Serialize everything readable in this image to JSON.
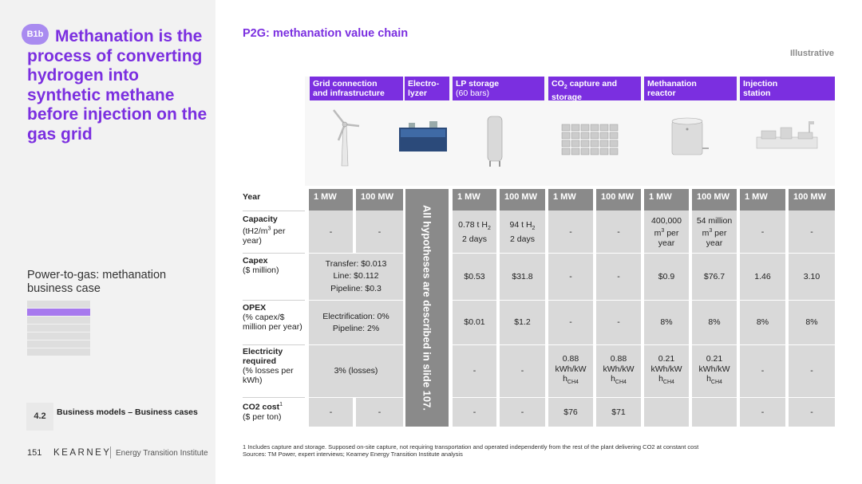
{
  "left": {
    "badge": "B1b",
    "title": "Methanation is the process of converting hydrogen into synthetic methane before injection on the gas grid",
    "section_label": "Power-to-gas: methanation business case",
    "nav_number": "4.2",
    "nav_text": "Business models – Business cases",
    "page_number": "151",
    "brand": "KEARNEY",
    "brand_sub": "Energy Transition Institute"
  },
  "slide": {
    "title": "P2G: methanation value chain",
    "tag": "Illustrative"
  },
  "chain": [
    {
      "l1": "Grid connection",
      "l2": "and infrastructure",
      "icon": "wind-turbine-icon"
    },
    {
      "l1": "Electro-",
      "l2": "lyzer",
      "icon": "electrolyzer-icon"
    },
    {
      "l1": "LP storage",
      "l2": "(60 bars)",
      "icon": "storage-tank-icon"
    },
    {
      "l1": "CO2 capture and",
      "l2": "storage",
      "icon": "co2-capture-icon"
    },
    {
      "l1": "Methanation",
      "l2": "reactor",
      "icon": "reactor-icon"
    },
    {
      "l1": "Injection",
      "l2": "station",
      "icon": "injection-station-icon"
    }
  ],
  "table": {
    "year_label": "Year",
    "columns": [
      "1 MW",
      "100 MW",
      "1 MW",
      "100 MW",
      "1 MW",
      "100 MW",
      "1 MW",
      "100 MW",
      "1 MW",
      "100 MW"
    ],
    "vertical_note": "All hypotheses are described in slide 107.",
    "rows": {
      "capacity": {
        "label_bold": "Capacity",
        "label_rest": "(tH2/m3 per year)",
        "grid": [
          "-",
          "-"
        ],
        "lp": [
          "0.78 t H2 2 days",
          "94 t H2 2 days"
        ],
        "co2": [
          "-",
          "-"
        ],
        "meth": [
          "400,000 m3 per year",
          "54 million m3 per year"
        ],
        "inj": [
          "-",
          "-"
        ]
      },
      "capex": {
        "label_bold": "Capex",
        "label_rest": "($ million)",
        "grid_merged": [
          "Transfer: $0.013",
          "Line: $0.112",
          "Pipeline: $0.3"
        ],
        "lp": [
          "$0.53",
          "$31.8"
        ],
        "co2": [
          "-",
          "-"
        ],
        "meth": [
          "$0.9",
          "$76.7"
        ],
        "inj": [
          "1.46",
          "3.10"
        ]
      },
      "opex": {
        "label_bold": "OPEX",
        "label_rest": "(% capex/$ million per year)",
        "grid_merged": [
          "Electrification: 0%",
          "Pipeline: 2%"
        ],
        "lp": [
          "$0.01",
          "$1.2"
        ],
        "co2": [
          "-",
          "-"
        ],
        "meth": [
          "8%",
          "8%"
        ],
        "inj": [
          "8%",
          "8%"
        ]
      },
      "electricity": {
        "label_bold": "Electricity required",
        "label_rest": "(% losses per kWh)",
        "grid_merged": [
          "3% (losses)"
        ],
        "lp": [
          "-",
          "-"
        ],
        "co2": [
          "0.88 kWh/kW hCH4",
          "0.88 kWh/kW hCH4"
        ],
        "meth": [
          "0.21 kWh/kW hCH4",
          "0.21 kWh/kW hCH4"
        ],
        "inj": [
          "-",
          "-"
        ]
      },
      "co2cost": {
        "label_bold": "CO2 cost",
        "label_sup": "1",
        "label_rest": "($ per ton)",
        "grid": [
          "-",
          "-"
        ],
        "lp": [
          "-",
          "-"
        ],
        "co2": [
          "$76",
          "$71"
        ],
        "meth": [
          "",
          ""
        ],
        "inj": [
          "-",
          "-"
        ]
      }
    }
  },
  "footnote": {
    "line1": "1 Includes capture and storage. Supposed on-site capture, not requiring transportation and operated independently from the rest of the plant delivering CO2 at constant cost",
    "line2": "Sources: TM Power, expert interviews; Kearney Energy Transition Institute analysis"
  },
  "colors": {
    "accent": "#7b2fe0",
    "header_gray": "#8a8a8a",
    "cell_gray": "#d9d9d9"
  }
}
